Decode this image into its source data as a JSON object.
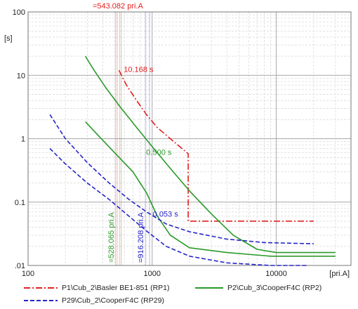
{
  "chart_data": {
    "type": "line",
    "title": "",
    "xlabel": "[pri.A]",
    "ylabel": "[s]",
    "x_scale": "log",
    "y_scale": "log",
    "xlim": [
      100,
      40000
    ],
    "ylim": [
      0.01,
      100
    ],
    "grid": true,
    "x_ticks": [
      {
        "value": 100,
        "label": "100"
      },
      {
        "value": 1000,
        "label": "1000"
      },
      {
        "value": 10000,
        "label": "10000"
      }
    ],
    "y_ticks": [
      {
        "value": 100,
        "label": "100"
      },
      {
        "value": 10,
        "label": "10"
      },
      {
        "value": 1,
        "label": "1"
      },
      {
        "value": 0.1,
        "label": "0.1"
      },
      {
        "value": 0.01,
        "label": ".01"
      }
    ],
    "legend_position": "bottom",
    "series": [
      {
        "name": "P1\\Cub_2\\Basler BE1-851 (RP1)",
        "color": "#e02020",
        "dash": "dashdot",
        "points": [
          [
            540,
            12
          ],
          [
            620,
            7
          ],
          [
            750,
            4
          ],
          [
            900,
            2.4
          ],
          [
            1100,
            1.5
          ],
          [
            1400,
            1.0
          ],
          [
            1950,
            0.58
          ],
          [
            1950,
            0.05
          ],
          [
            20000,
            0.05
          ]
        ]
      },
      {
        "name": "P2\\Cub_3\\CooperF4C (RP2)",
        "color": "#2a9a2a",
        "dash": "solid",
        "curves": [
          [
            [
              290,
              20
            ],
            [
              340,
              12
            ],
            [
              420,
              6.5
            ],
            [
              550,
              3.2
            ],
            [
              750,
              1.5
            ],
            [
              1000,
              0.75
            ],
            [
              1400,
              0.34
            ],
            [
              2000,
              0.15
            ],
            [
              3000,
              0.065
            ],
            [
              4500,
              0.03
            ],
            [
              7000,
              0.018
            ],
            [
              10000,
              0.016
            ],
            [
              30000,
              0.016
            ]
          ],
          [
            [
              290,
              1.85
            ],
            [
              380,
              1.05
            ],
            [
              520,
              0.55
            ],
            [
              700,
              0.3
            ],
            [
              900,
              0.14
            ],
            [
              1100,
              0.06
            ],
            [
              1400,
              0.03
            ],
            [
              2000,
              0.019
            ],
            [
              4000,
              0.016
            ],
            [
              9000,
              0.014
            ],
            [
              30000,
              0.014
            ]
          ]
        ]
      },
      {
        "name": "P29\\Cub_2\\CooperF4C (RP29)",
        "color": "#2525c8",
        "dash": "dashed",
        "curves": [
          [
            [
              150,
              2.4
            ],
            [
              200,
              1.0
            ],
            [
              300,
              0.42
            ],
            [
              450,
              0.2
            ],
            [
              650,
              0.11
            ],
            [
              900,
              0.07
            ],
            [
              1300,
              0.045
            ],
            [
              2000,
              0.034
            ],
            [
              4000,
              0.026
            ],
            [
              8000,
              0.023
            ],
            [
              20000,
              0.022
            ]
          ],
          [
            [
              150,
              0.7
            ],
            [
              200,
              0.4
            ],
            [
              300,
              0.2
            ],
            [
              450,
              0.11
            ],
            [
              650,
              0.06
            ],
            [
              900,
              0.035
            ],
            [
              1300,
              0.02
            ],
            [
              2000,
              0.014
            ],
            [
              4000,
              0.011
            ],
            [
              9000,
              0.01
            ],
            [
              18000,
              0.01
            ]
          ]
        ]
      }
    ],
    "vertical_markers": [
      {
        "x": 543.082,
        "color": "#e02020",
        "label": "=543.082 pri.A",
        "label_position": "top"
      },
      {
        "x": 528.065,
        "color": "#2a9a2a",
        "label": "=528.065 pri.A",
        "label_position": "bottom-vertical"
      },
      {
        "x": 916.208,
        "color": "#2525c8",
        "label": "=916.208 pri.A",
        "label_position": "bottom-vertical"
      }
    ],
    "annotations": [
      {
        "text": "10.168 s",
        "color": "#e02020",
        "x": 560,
        "y": 10.168
      },
      {
        "text": "0.500 s",
        "color": "#2a9a2a",
        "x": 850,
        "y": 0.5
      },
      {
        "text": "0.053 s",
        "color": "#2525c8",
        "x": 960,
        "y": 0.053
      }
    ]
  }
}
